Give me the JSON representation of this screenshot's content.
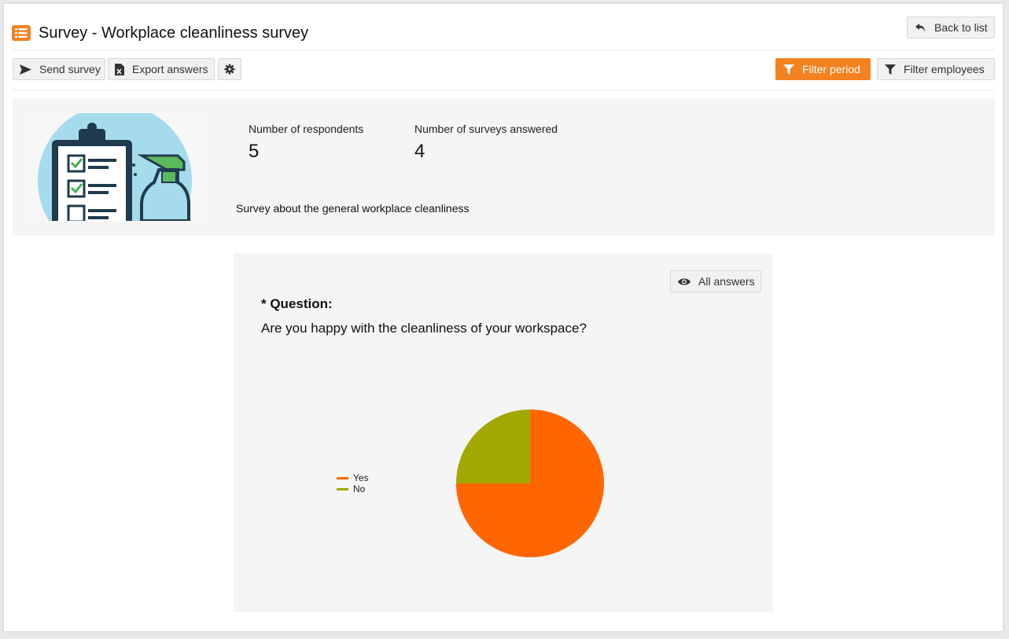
{
  "header": {
    "title": "Survey - Workplace cleanliness survey",
    "back_label": "Back to list"
  },
  "toolbar": {
    "send_label": "Send survey",
    "export_label": "Export answers",
    "filter_period_label": "Filter period",
    "filter_employees_label": "Filter employees"
  },
  "stats": {
    "respondents_label": "Number of respondents",
    "respondents_value": "5",
    "answered_label": "Number of surveys answered",
    "answered_value": "4",
    "description": "Survey about the general workplace cleanliness"
  },
  "question": {
    "all_answers_label": "All answers",
    "label": "* Question:",
    "text": "Are you happy with the cleanliness of your workspace?"
  },
  "colors": {
    "accent": "#f58220",
    "yes": "#ff6600",
    "no": "#a2a800"
  },
  "chart_data": {
    "type": "pie",
    "categories": [
      "Yes",
      "No"
    ],
    "values": [
      3,
      1
    ],
    "colors": [
      "#ff6600",
      "#a2a800"
    ],
    "legend": "left"
  }
}
